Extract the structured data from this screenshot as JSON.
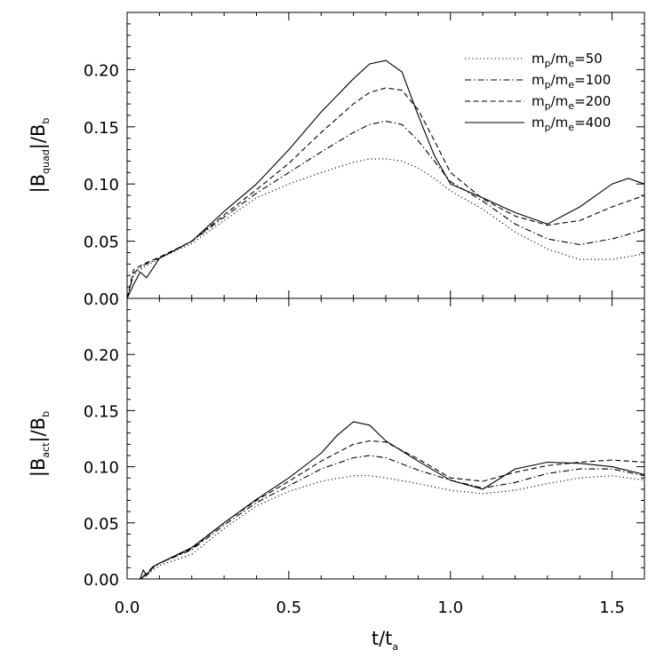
{
  "chart_data": [
    {
      "type": "line",
      "panel": "top",
      "ylabel": {
        "main": "|B",
        "sub": "quad",
        "tail": "|/B",
        "sub2": "b"
      },
      "xlim": [
        0,
        1.6
      ],
      "ylim": [
        0,
        0.25
      ],
      "yticks": [
        "0.00",
        "0.05",
        "0.10",
        "0.15",
        "0.20"
      ],
      "ytick_values": [
        0,
        0.05,
        0.1,
        0.15,
        0.2
      ],
      "legend": {
        "placement": "top-right"
      },
      "series": [
        {
          "name": "m_p/m_e=50",
          "style": "dotted",
          "x": [
            0,
            0.02,
            0.05,
            0.1,
            0.2,
            0.3,
            0.4,
            0.5,
            0.6,
            0.7,
            0.75,
            0.8,
            0.85,
            0.9,
            0.95,
            1.0,
            1.1,
            1.2,
            1.3,
            1.4,
            1.5,
            1.6
          ],
          "y": [
            0.0,
            0.02,
            0.027,
            0.035,
            0.048,
            0.068,
            0.088,
            0.1,
            0.11,
            0.119,
            0.122,
            0.122,
            0.12,
            0.114,
            0.105,
            0.094,
            0.078,
            0.058,
            0.043,
            0.034,
            0.034,
            0.039
          ]
        },
        {
          "name": "m_p/m_e=100",
          "style": "dashdot",
          "x": [
            0,
            0.02,
            0.05,
            0.1,
            0.2,
            0.3,
            0.4,
            0.5,
            0.6,
            0.7,
            0.75,
            0.8,
            0.85,
            0.9,
            0.95,
            1.0,
            1.1,
            1.2,
            1.3,
            1.4,
            1.5,
            1.6
          ],
          "y": [
            0.0,
            0.022,
            0.029,
            0.035,
            0.05,
            0.071,
            0.092,
            0.11,
            0.128,
            0.145,
            0.152,
            0.155,
            0.152,
            0.138,
            0.12,
            0.102,
            0.085,
            0.065,
            0.052,
            0.047,
            0.052,
            0.06
          ]
        },
        {
          "name": "m_p/m_e=200",
          "style": "dashed",
          "x": [
            0,
            0.02,
            0.05,
            0.1,
            0.2,
            0.3,
            0.4,
            0.5,
            0.6,
            0.7,
            0.75,
            0.8,
            0.85,
            0.9,
            0.95,
            1.0,
            1.1,
            1.2,
            1.3,
            1.4,
            1.5,
            1.6
          ],
          "y": [
            0.0,
            0.025,
            0.03,
            0.036,
            0.05,
            0.073,
            0.095,
            0.118,
            0.145,
            0.17,
            0.18,
            0.184,
            0.182,
            0.165,
            0.138,
            0.11,
            0.087,
            0.072,
            0.064,
            0.068,
            0.08,
            0.09
          ]
        },
        {
          "name": "m_p/m_e=400",
          "style": "solid",
          "x": [
            0,
            0.02,
            0.04,
            0.06,
            0.1,
            0.2,
            0.3,
            0.4,
            0.5,
            0.6,
            0.7,
            0.75,
            0.8,
            0.85,
            0.9,
            0.95,
            1.0,
            1.1,
            1.2,
            1.3,
            1.4,
            1.5,
            1.55,
            1.6
          ],
          "y": [
            0.0,
            0.012,
            0.023,
            0.018,
            0.035,
            0.05,
            0.076,
            0.1,
            0.13,
            0.163,
            0.192,
            0.205,
            0.208,
            0.198,
            0.16,
            0.125,
            0.1,
            0.088,
            0.075,
            0.065,
            0.08,
            0.1,
            0.105,
            0.1
          ]
        }
      ]
    },
    {
      "type": "line",
      "panel": "bottom",
      "ylabel": {
        "main": "|B",
        "sub": "act",
        "tail": "|/B",
        "sub2": "b"
      },
      "xlabel": {
        "main": "t/t",
        "sub": "a"
      },
      "xlim": [
        0,
        1.6
      ],
      "ylim": [
        0,
        0.25
      ],
      "xticks": [
        "0.0",
        "0.5",
        "1.0",
        "1.5"
      ],
      "xtick_values": [
        0,
        0.5,
        1.0,
        1.5
      ],
      "yticks": [
        "0.00",
        "0.05",
        "0.10",
        "0.15",
        "0.20"
      ],
      "ytick_values": [
        0,
        0.05,
        0.1,
        0.15,
        0.2
      ],
      "series": [
        {
          "name": "m_p/m_e=50",
          "style": "dotted",
          "x": [
            0,
            0.04,
            0.06,
            0.08,
            0.1,
            0.2,
            0.3,
            0.4,
            0.5,
            0.6,
            0.7,
            0.75,
            0.8,
            0.9,
            1.0,
            1.1,
            1.2,
            1.3,
            1.4,
            1.5,
            1.6
          ],
          "y": [
            0.0,
            0.0,
            0.003,
            0.008,
            0.012,
            0.022,
            0.045,
            0.065,
            0.078,
            0.087,
            0.092,
            0.092,
            0.09,
            0.085,
            0.079,
            0.076,
            0.079,
            0.085,
            0.09,
            0.092,
            0.088
          ]
        },
        {
          "name": "m_p/m_e=100",
          "style": "dashdot",
          "x": [
            0,
            0.04,
            0.06,
            0.08,
            0.1,
            0.2,
            0.3,
            0.4,
            0.5,
            0.6,
            0.7,
            0.75,
            0.8,
            0.9,
            1.0,
            1.1,
            1.2,
            1.3,
            1.4,
            1.5,
            1.6
          ],
          "y": [
            0.0,
            0.0,
            0.004,
            0.01,
            0.014,
            0.026,
            0.048,
            0.068,
            0.083,
            0.098,
            0.108,
            0.11,
            0.108,
            0.097,
            0.088,
            0.081,
            0.086,
            0.094,
            0.098,
            0.098,
            0.092
          ]
        },
        {
          "name": "m_p/m_e=200",
          "style": "dashed",
          "x": [
            0,
            0.04,
            0.06,
            0.08,
            0.1,
            0.2,
            0.3,
            0.4,
            0.5,
            0.6,
            0.7,
            0.75,
            0.8,
            0.9,
            1.0,
            1.1,
            1.2,
            1.3,
            1.4,
            1.5,
            1.6
          ],
          "y": [
            0.0,
            0.0,
            0.005,
            0.011,
            0.014,
            0.027,
            0.05,
            0.07,
            0.087,
            0.105,
            0.12,
            0.123,
            0.122,
            0.107,
            0.09,
            0.087,
            0.095,
            0.101,
            0.104,
            0.106,
            0.104
          ]
        },
        {
          "name": "m_p/m_e=400",
          "style": "solid",
          "x": [
            0,
            0.04,
            0.05,
            0.06,
            0.08,
            0.1,
            0.2,
            0.3,
            0.4,
            0.5,
            0.6,
            0.65,
            0.7,
            0.75,
            0.8,
            0.9,
            1.0,
            1.1,
            1.2,
            1.3,
            1.4,
            1.5,
            1.6
          ],
          "y": [
            0.0,
            0.0,
            0.008,
            0.003,
            0.011,
            0.014,
            0.028,
            0.05,
            0.071,
            0.09,
            0.112,
            0.128,
            0.14,
            0.137,
            0.123,
            0.105,
            0.088,
            0.08,
            0.098,
            0.104,
            0.103,
            0.1,
            0.093
          ]
        }
      ]
    }
  ]
}
